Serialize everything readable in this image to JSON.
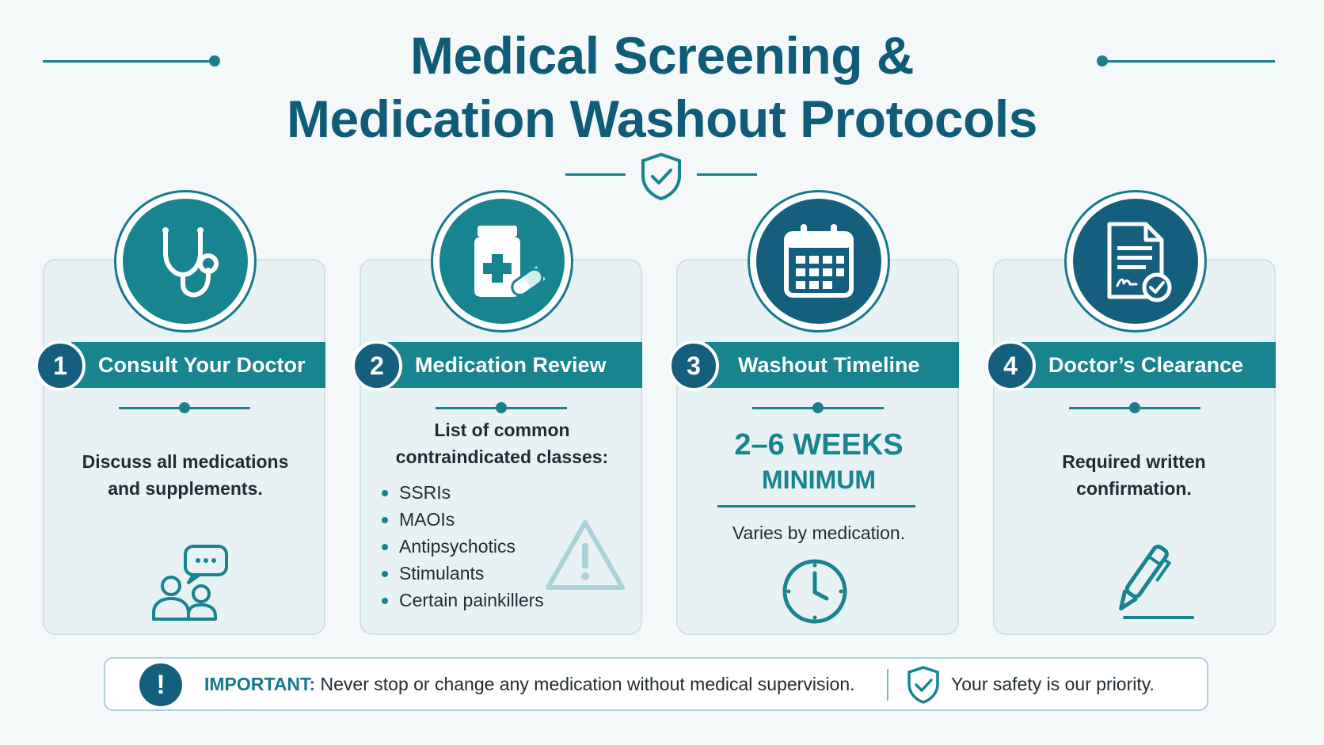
{
  "header": {
    "title_line1": "Medical Screening &",
    "title_line2": "Medication Washout Protocols"
  },
  "steps": [
    {
      "number": "1",
      "title": "Consult Your Doctor",
      "body": "Discuss all medications and supplements.",
      "icon": "stethoscope-icon",
      "bottom_icon": "people-chat-icon"
    },
    {
      "number": "2",
      "title": "Medication Review",
      "intro": "List of common contraindicated classes:",
      "items": [
        "SSRIs",
        "MAOIs",
        "Antipsychotics",
        "Stimulants",
        "Certain painkillers"
      ],
      "icon": "medicine-bottle-icon",
      "bottom_icon": "warning-icon"
    },
    {
      "number": "3",
      "title": "Washout Timeline",
      "highlight_line1": "2–6 WEEKS",
      "highlight_line2": "MINIMUM",
      "body": "Varies by medication.",
      "icon": "calendar-icon",
      "bottom_icon": "clock-icon"
    },
    {
      "number": "4",
      "title": "Doctor’s Clearance",
      "body": "Required written confirmation.",
      "icon": "signed-document-icon",
      "bottom_icon": "pen-icon"
    }
  ],
  "footer": {
    "important_label": "IMPORTANT:",
    "important_text": "Never stop or change any medication without medical supervision.",
    "safety_text": "Your safety is our priority."
  },
  "colors": {
    "teal": "#17848f",
    "navy": "#155f7e",
    "card_bg": "#e8f2f4",
    "title": "#0f5c78"
  }
}
